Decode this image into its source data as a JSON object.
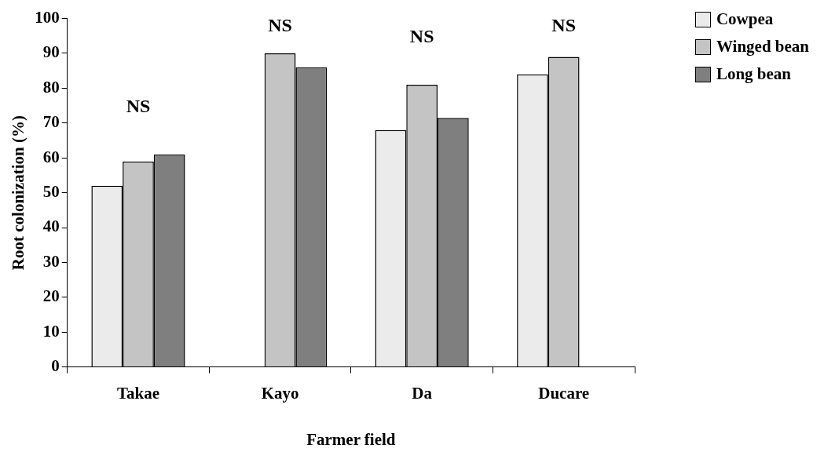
{
  "chart_data": {
    "type": "bar",
    "xlabel": "Farmer field",
    "ylabel": "Root colonization (%)",
    "categories": [
      "Takae",
      "Kayo",
      "Da",
      "Ducare"
    ],
    "series": [
      {
        "name": "Cowpea",
        "color": "#ebebeb",
        "values": [
          52,
          null,
          68,
          84
        ]
      },
      {
        "name": "Winged bean",
        "color": "#c4c4c4",
        "values": [
          59,
          90,
          81,
          89
        ]
      },
      {
        "name": "Long bean",
        "color": "#7f7f7f",
        "values": [
          61,
          86,
          71.5,
          null
        ]
      }
    ],
    "ylim": [
      0,
      100
    ],
    "yticks": [
      0,
      10,
      20,
      30,
      40,
      50,
      60,
      70,
      80,
      90,
      100
    ],
    "legend": "top right",
    "grid": false,
    "annotations": [
      "NS",
      "NS",
      "NS",
      "NS"
    ]
  }
}
